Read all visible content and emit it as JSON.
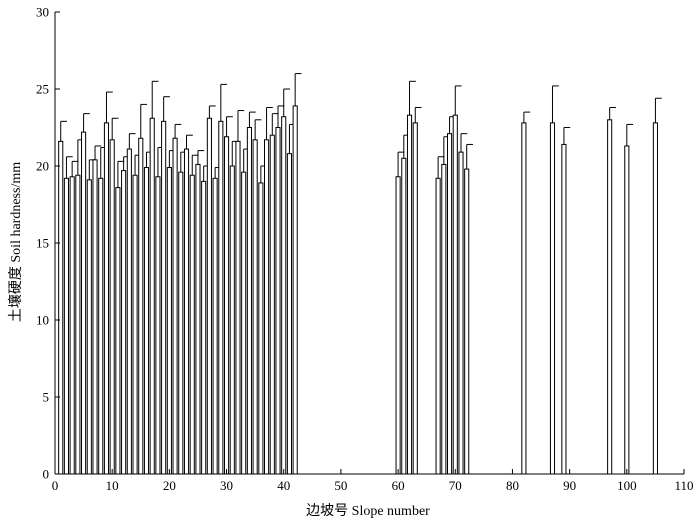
{
  "chart_data": {
    "type": "bar",
    "title": "",
    "xlabel": "边坡号 Slope number",
    "ylabel": "土壤硬度 Soil hardness/mm",
    "xlim": [
      0,
      110
    ],
    "ylim": [
      0,
      30
    ],
    "xticks": [
      0,
      10,
      20,
      30,
      40,
      50,
      60,
      70,
      80,
      90,
      100,
      110
    ],
    "yticks": [
      0,
      5,
      10,
      15,
      20,
      25,
      30
    ],
    "grid": false,
    "legend": "none",
    "bar_fill": "#ffffff",
    "bar_edge": "#000000",
    "x": [
      1,
      2,
      3,
      4,
      5,
      6,
      7,
      8,
      9,
      10,
      11,
      12,
      13,
      14,
      15,
      16,
      17,
      18,
      19,
      20,
      21,
      22,
      23,
      24,
      25,
      26,
      27,
      28,
      29,
      30,
      31,
      32,
      33,
      34,
      35,
      36,
      37,
      38,
      39,
      40,
      41,
      42,
      60,
      61,
      62,
      63,
      67,
      68,
      69,
      70,
      71,
      72,
      82,
      87,
      89,
      97,
      100,
      105
    ],
    "values": [
      21.6,
      19.2,
      19.3,
      19.4,
      22.2,
      19.1,
      20.4,
      19.2,
      22.8,
      21.7,
      18.6,
      19.7,
      21.1,
      19.4,
      21.8,
      19.9,
      23.1,
      19.3,
      22.9,
      19.9,
      21.8,
      19.6,
      21.1,
      19.4,
      20.1,
      19.0,
      23.1,
      19.2,
      22.9,
      21.9,
      20.0,
      21.6,
      19.6,
      22.5,
      21.7,
      18.9,
      21.7,
      22.0,
      22.5,
      23.2,
      20.8,
      23.9,
      19.3,
      20.5,
      23.3,
      22.8,
      19.2,
      20.1,
      22.1,
      23.3,
      20.9,
      19.8,
      22.8,
      22.8,
      21.4,
      23.0,
      21.3,
      22.8
    ],
    "errors": [
      1.3,
      1.4,
      1.0,
      2.3,
      1.2,
      1.3,
      0.9,
      2.0,
      2.0,
      1.4,
      1.7,
      0.9,
      1.0,
      1.3,
      2.2,
      1.0,
      2.4,
      1.9,
      1.6,
      1.1,
      0.9,
      1.3,
      0.9,
      1.3,
      0.9,
      1.0,
      0.8,
      0.7,
      2.4,
      1.3,
      1.6,
      2.0,
      1.5,
      1.0,
      1.3,
      1.1,
      2.1,
      1.4,
      1.4,
      1.8,
      1.9,
      2.1,
      1.6,
      1.5,
      2.2,
      1.0,
      1.4,
      1.8,
      1.1,
      1.9,
      1.2,
      1.6,
      0.7,
      2.4,
      1.1,
      0.8,
      1.4,
      1.6
    ]
  }
}
